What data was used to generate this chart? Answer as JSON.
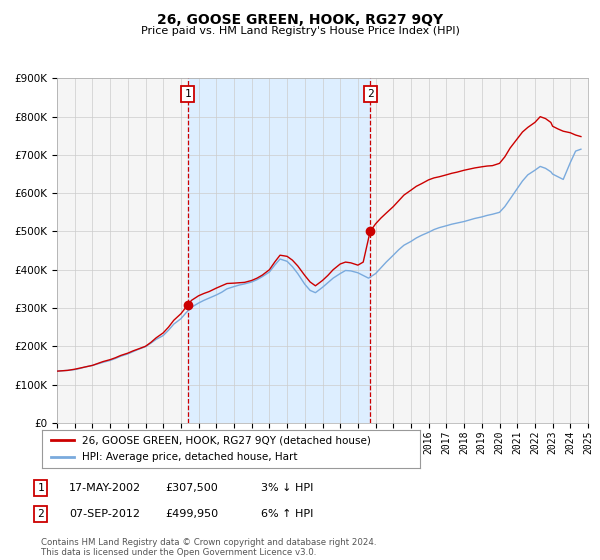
{
  "title": "26, GOOSE GREEN, HOOK, RG27 9QY",
  "subtitle": "Price paid vs. HM Land Registry's House Price Index (HPI)",
  "legend_line1": "26, GOOSE GREEN, HOOK, RG27 9QY (detached house)",
  "legend_line2": "HPI: Average price, detached house, Hart",
  "annotation1_label": "1",
  "annotation1_date": "17-MAY-2002",
  "annotation1_price": "£307,500",
  "annotation1_hpi": "3% ↓ HPI",
  "annotation1_year": 2002.38,
  "annotation1_value": 307500,
  "annotation2_label": "2",
  "annotation2_date": "07-SEP-2012",
  "annotation2_price": "£499,950",
  "annotation2_hpi": "6% ↑ HPI",
  "annotation2_year": 2012.69,
  "annotation2_value": 499950,
  "red_line_color": "#cc0000",
  "blue_line_color": "#7aaadd",
  "shade_color": "#ddeeff",
  "grid_color": "#cccccc",
  "bg_color": "#ffffff",
  "plot_bg_color": "#f5f5f5",
  "ylim_min": 0,
  "ylim_max": 900000,
  "xlim_min": 1995,
  "xlim_max": 2025,
  "footer_text": "Contains HM Land Registry data © Crown copyright and database right 2024.\nThis data is licensed under the Open Government Licence v3.0.",
  "red_data_x": [
    1995.0,
    1995.3,
    1995.6,
    1996.0,
    1996.3,
    1996.6,
    1997.0,
    1997.3,
    1997.6,
    1998.0,
    1998.3,
    1998.6,
    1999.0,
    1999.3,
    1999.6,
    2000.0,
    2000.3,
    2000.6,
    2001.0,
    2001.3,
    2001.6,
    2002.0,
    2002.38,
    2002.6,
    2003.0,
    2003.3,
    2003.6,
    2004.0,
    2004.3,
    2004.6,
    2005.0,
    2005.3,
    2005.6,
    2006.0,
    2006.3,
    2006.6,
    2007.0,
    2007.3,
    2007.6,
    2008.0,
    2008.3,
    2008.6,
    2009.0,
    2009.3,
    2009.6,
    2010.0,
    2010.3,
    2010.6,
    2011.0,
    2011.3,
    2011.6,
    2012.0,
    2012.3,
    2012.69,
    2013.0,
    2013.3,
    2013.6,
    2014.0,
    2014.3,
    2014.6,
    2015.0,
    2015.3,
    2015.6,
    2016.0,
    2016.3,
    2016.6,
    2017.0,
    2017.3,
    2017.6,
    2018.0,
    2018.3,
    2018.6,
    2019.0,
    2019.3,
    2019.6,
    2020.0,
    2020.3,
    2020.6,
    2021.0,
    2021.3,
    2021.6,
    2022.0,
    2022.3,
    2022.6,
    2022.9,
    2023.0,
    2023.3,
    2023.6,
    2024.0,
    2024.3,
    2024.6
  ],
  "red_data_y": [
    135000,
    136000,
    137000,
    140000,
    143000,
    146000,
    150000,
    155000,
    160000,
    165000,
    170000,
    176000,
    182000,
    188000,
    193000,
    200000,
    210000,
    222000,
    235000,
    250000,
    268000,
    285000,
    307500,
    320000,
    332000,
    338000,
    343000,
    352000,
    358000,
    364000,
    365000,
    366000,
    367000,
    372000,
    378000,
    386000,
    400000,
    420000,
    438000,
    435000,
    425000,
    410000,
    385000,
    368000,
    358000,
    372000,
    385000,
    400000,
    415000,
    420000,
    418000,
    412000,
    420000,
    499950,
    520000,
    535000,
    548000,
    565000,
    580000,
    595000,
    608000,
    618000,
    625000,
    635000,
    640000,
    643000,
    648000,
    652000,
    655000,
    660000,
    663000,
    666000,
    669000,
    671000,
    672000,
    678000,
    695000,
    718000,
    742000,
    760000,
    772000,
    785000,
    800000,
    795000,
    785000,
    775000,
    768000,
    762000,
    758000,
    752000,
    748000
  ],
  "blue_data_x": [
    1995.0,
    1995.3,
    1995.6,
    1996.0,
    1996.3,
    1996.6,
    1997.0,
    1997.3,
    1997.6,
    1998.0,
    1998.3,
    1998.6,
    1999.0,
    1999.3,
    1999.6,
    2000.0,
    2000.3,
    2000.6,
    2001.0,
    2001.3,
    2001.6,
    2002.0,
    2002.3,
    2002.6,
    2003.0,
    2003.3,
    2003.6,
    2004.0,
    2004.3,
    2004.6,
    2005.0,
    2005.3,
    2005.6,
    2006.0,
    2006.3,
    2006.6,
    2007.0,
    2007.3,
    2007.6,
    2008.0,
    2008.3,
    2008.6,
    2009.0,
    2009.3,
    2009.6,
    2010.0,
    2010.3,
    2010.6,
    2011.0,
    2011.3,
    2011.6,
    2012.0,
    2012.3,
    2012.6,
    2013.0,
    2013.3,
    2013.6,
    2014.0,
    2014.3,
    2014.6,
    2015.0,
    2015.3,
    2015.6,
    2016.0,
    2016.3,
    2016.6,
    2017.0,
    2017.3,
    2017.6,
    2018.0,
    2018.3,
    2018.6,
    2019.0,
    2019.3,
    2019.6,
    2020.0,
    2020.3,
    2020.6,
    2021.0,
    2021.3,
    2021.6,
    2022.0,
    2022.3,
    2022.6,
    2022.9,
    2023.0,
    2023.3,
    2023.6,
    2024.0,
    2024.3,
    2024.6
  ],
  "blue_data_y": [
    135000,
    136000,
    137000,
    139000,
    142000,
    146000,
    150000,
    154000,
    158000,
    163000,
    168000,
    174000,
    180000,
    186000,
    192000,
    199000,
    208000,
    218000,
    228000,
    242000,
    258000,
    272000,
    288000,
    302000,
    313000,
    320000,
    326000,
    334000,
    341000,
    350000,
    356000,
    360000,
    363000,
    368000,
    374000,
    382000,
    394000,
    412000,
    428000,
    422000,
    408000,
    390000,
    362000,
    346000,
    340000,
    354000,
    366000,
    378000,
    390000,
    398000,
    397000,
    392000,
    385000,
    378000,
    390000,
    405000,
    420000,
    438000,
    452000,
    464000,
    474000,
    483000,
    490000,
    498000,
    505000,
    510000,
    515000,
    519000,
    522000,
    526000,
    530000,
    534000,
    538000,
    542000,
    545000,
    550000,
    565000,
    585000,
    612000,
    632000,
    648000,
    660000,
    670000,
    665000,
    656000,
    650000,
    643000,
    636000,
    680000,
    710000,
    715000
  ]
}
